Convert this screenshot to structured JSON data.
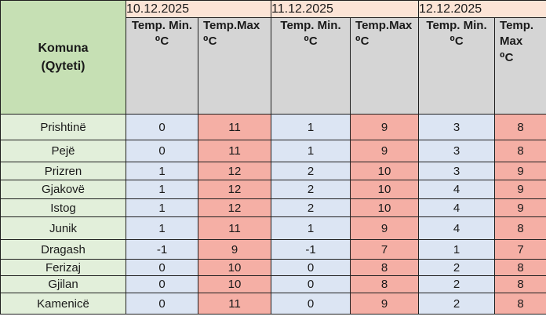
{
  "table": {
    "corner": "Komuna\n(Qyteti)",
    "dates": [
      "10.12.2025",
      "11.12.2025",
      "12.12.2025"
    ],
    "subheaders": [
      "Temp. Min.\n⁰C",
      "Temp.Max\n⁰C",
      "Temp. Min.\n⁰C",
      "Temp.Max\n⁰C",
      "Temp. Min.\n⁰C",
      "Temp.\nMax\n⁰C"
    ]
  },
  "chart_data": {
    "type": "table",
    "title": "",
    "column_groups": [
      "10.12.2025",
      "11.12.2025",
      "12.12.2025"
    ],
    "columns": [
      "Komuna (Qyteti)",
      "10.12.2025 Temp. Min. ⁰C",
      "10.12.2025 Temp.Max ⁰C",
      "11.12.2025 Temp. Min. ⁰C",
      "11.12.2025 Temp.Max ⁰C",
      "12.12.2025 Temp. Min. ⁰C",
      "12.12.2025 Temp. Max ⁰C"
    ],
    "rows": [
      [
        "Prishtinë",
        0,
        11,
        1,
        9,
        3,
        8
      ],
      [
        "Pejë",
        0,
        11,
        1,
        9,
        3,
        8
      ],
      [
        "Prizren",
        1,
        12,
        2,
        10,
        3,
        9
      ],
      [
        "Gjakovë",
        1,
        12,
        2,
        10,
        4,
        9
      ],
      [
        "Istog",
        1,
        12,
        2,
        10,
        4,
        9
      ],
      [
        "Junik",
        1,
        11,
        1,
        9,
        4,
        8
      ],
      [
        "Dragash",
        -1,
        9,
        -1,
        7,
        1,
        7
      ],
      [
        "Ferizaj",
        0,
        10,
        0,
        8,
        2,
        8
      ],
      [
        "Gjilan",
        0,
        10,
        0,
        8,
        2,
        8
      ],
      [
        "Kamenicë",
        0,
        11,
        0,
        9,
        2,
        8
      ]
    ]
  },
  "colors": {
    "corner_bg": "#C6E0B4",
    "city_bg": "#E2EFDA",
    "date_bg": "#FCE4D6",
    "subheader_bg": "#D5D5D5",
    "min_bg": "#DCE5F3",
    "max_bg": "#F5AFA5",
    "border": "#1F1F1F",
    "text": "#1A1A1A"
  }
}
